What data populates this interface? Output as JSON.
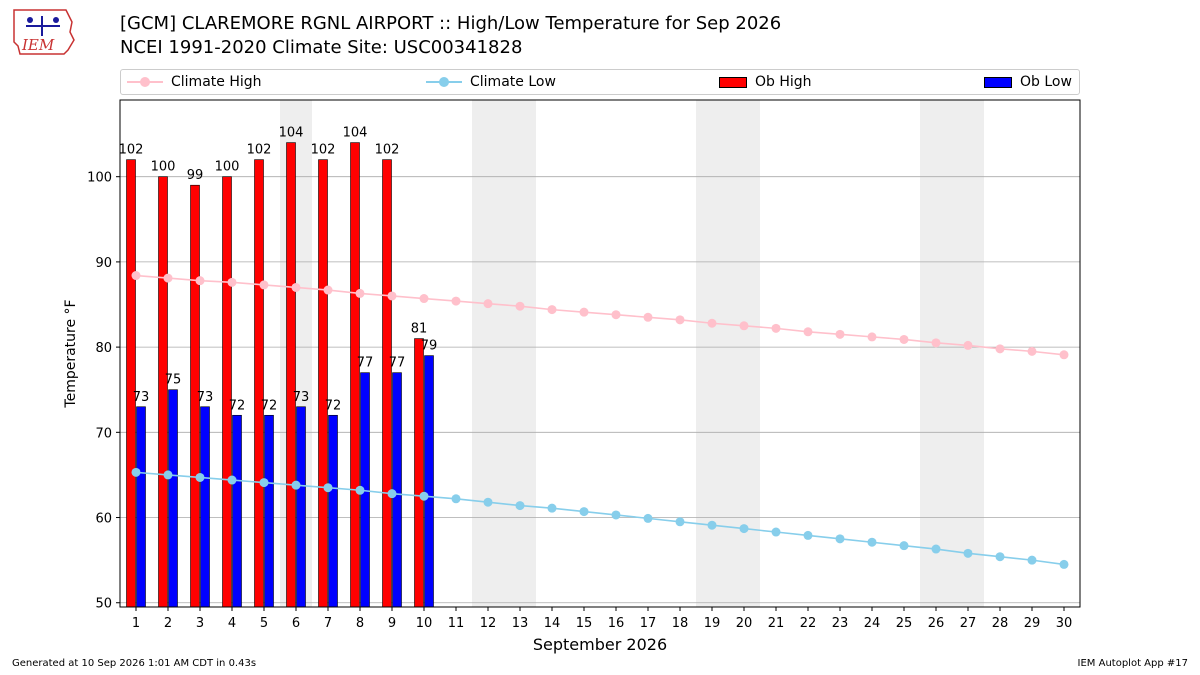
{
  "header": {
    "title_line1": "[GCM] CLAREMORE RGNL AIRPORT :: High/Low Temperature for Sep 2026",
    "title_line2": "NCEI 1991-2020 Climate Site: USC00341828",
    "logo_text": "IEM"
  },
  "footer": {
    "generated": "Generated at 10 Sep 2026 1:01 AM CDT in 0.43s",
    "app": "IEM Autoplot App #17"
  },
  "legend": {
    "climate_high": "Climate High",
    "climate_low": "Climate Low",
    "ob_high": "Ob High",
    "ob_low": "Ob Low"
  },
  "colors": {
    "climate_high": "#ffc0cb",
    "climate_low": "#87ceeb",
    "ob_high": "#ff0000",
    "ob_low": "#0000ff",
    "weekend_shade": "#eeeeee",
    "grid": "#aaaaaa"
  },
  "chart_data": {
    "type": "bar",
    "xlabel": "September 2026",
    "ylabel": "Temperature °F",
    "ylim": [
      49.5,
      109
    ],
    "xlim": [
      0.5,
      30.5
    ],
    "yticks": [
      50,
      60,
      70,
      80,
      90,
      100
    ],
    "days": [
      1,
      2,
      3,
      4,
      5,
      6,
      7,
      8,
      9,
      10,
      11,
      12,
      13,
      14,
      15,
      16,
      17,
      18,
      19,
      20,
      21,
      22,
      23,
      24,
      25,
      26,
      27,
      28,
      29,
      30
    ],
    "shaded_days": [
      6,
      12,
      13,
      19,
      20,
      26,
      27
    ],
    "grid": "horizontal",
    "legend_position": "top",
    "ob_high": [
      102,
      100,
      99,
      100,
      102,
      104,
      102,
      104,
      102,
      81
    ],
    "ob_low": [
      73,
      75,
      73,
      72,
      72,
      73,
      72,
      77,
      77,
      79
    ],
    "climate_high": [
      88.4,
      88.1,
      87.8,
      87.6,
      87.3,
      87.0,
      86.7,
      86.3,
      86.0,
      85.7,
      85.4,
      85.1,
      84.8,
      84.4,
      84.1,
      83.8,
      83.5,
      83.2,
      82.8,
      82.5,
      82.2,
      81.8,
      81.5,
      81.2,
      80.9,
      80.5,
      80.2,
      79.8,
      79.5,
      79.1
    ],
    "climate_low": [
      65.3,
      65.0,
      64.7,
      64.4,
      64.1,
      63.8,
      63.5,
      63.2,
      62.8,
      62.5,
      62.2,
      61.8,
      61.4,
      61.1,
      60.7,
      60.3,
      59.9,
      59.5,
      59.1,
      58.7,
      58.3,
      57.9,
      57.5,
      57.1,
      56.7,
      56.3,
      55.8,
      55.4,
      55.0,
      54.5
    ]
  }
}
